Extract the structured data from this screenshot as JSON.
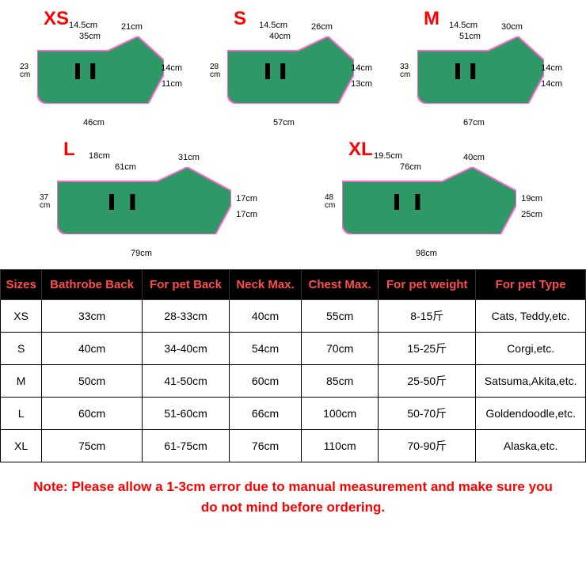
{
  "diagrams": [
    {
      "size": "XS",
      "wide": false,
      "top1": "14.5cm",
      "top2": "21cm",
      "top3": "35cm",
      "left": "23\ncm",
      "right1": "14cm",
      "right2": "11cm",
      "bottom": "46cm"
    },
    {
      "size": "S",
      "wide": false,
      "top1": "14.5cm",
      "top2": "26cm",
      "top3": "40cm",
      "left": "28\ncm",
      "right1": "14cm",
      "right2": "13cm",
      "bottom": "57cm"
    },
    {
      "size": "M",
      "wide": false,
      "top1": "14.5cm",
      "top2": "30cm",
      "top3": "51cm",
      "left": "33\ncm",
      "right1": "14cm",
      "right2": "14cm",
      "bottom": "67cm"
    },
    {
      "size": "L",
      "wide": true,
      "top1": "18cm",
      "top2": "31cm",
      "top3": "61cm",
      "left": "37\ncm",
      "right1": "17cm",
      "right2": "17cm",
      "bottom": "79cm"
    },
    {
      "size": "XL",
      "wide": true,
      "top1": "19.5cm",
      "top2": "40cm",
      "top3": "76cm",
      "left": "48\ncm",
      "right1": "19cm",
      "right2": "25cm",
      "bottom": "98cm"
    }
  ],
  "shape_fill": "#2e9966",
  "shape_stroke": "#ff66cc",
  "table": {
    "headers": [
      "Sizes",
      "Bathrobe Back",
      "For pet Back",
      "Neck Max.",
      "Chest Max.",
      "For pet weight",
      "For pet Type"
    ],
    "rows": [
      [
        "XS",
        "33cm",
        "28-33cm",
        "40cm",
        "55cm",
        "8-15斤",
        "Cats, Teddy,etc."
      ],
      [
        "S",
        "40cm",
        "34-40cm",
        "54cm",
        "70cm",
        "15-25斤",
        "Corgi,etc."
      ],
      [
        "M",
        "50cm",
        "41-50cm",
        "60cm",
        "85cm",
        "25-50斤",
        "Satsuma,Akita,etc."
      ],
      [
        "L",
        "60cm",
        "51-60cm",
        "66cm",
        "100cm",
        "50-70斤",
        "Goldendoodle,etc."
      ],
      [
        "XL",
        "75cm",
        "61-75cm",
        "76cm",
        "110cm",
        "70-90斤",
        "Alaska,etc."
      ]
    ]
  },
  "note": "Note: Please allow a 1-3cm error due to manual measurement and make sure you do not mind before ordering."
}
